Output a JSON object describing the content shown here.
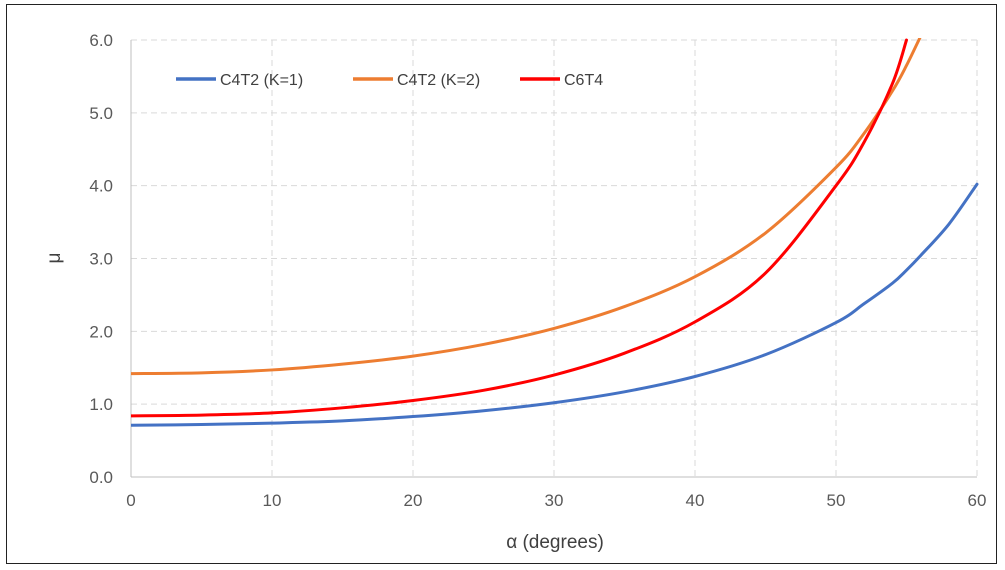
{
  "chart_data": {
    "type": "line",
    "title": "",
    "xlabel": "α (degrees)",
    "ylabel": "μ",
    "xlim": [
      0,
      60
    ],
    "ylim": [
      0,
      6
    ],
    "xticks": [
      "0",
      "10",
      "20",
      "30",
      "40",
      "50",
      "60"
    ],
    "yticks": [
      "0.0",
      "1.0",
      "2.0",
      "3.0",
      "4.0",
      "5.0",
      "6.0"
    ],
    "grid": true,
    "legend_position": "top-left",
    "x": [
      0,
      5,
      10,
      15,
      20,
      25,
      30,
      35,
      40,
      45,
      50,
      52,
      54,
      55,
      56,
      58,
      60
    ],
    "series": [
      {
        "name": "C4T2 (K=1)",
        "color": "#4472C4",
        "values": [
          0.71,
          0.72,
          0.74,
          0.77,
          0.83,
          0.91,
          1.02,
          1.17,
          1.38,
          1.68,
          2.12,
          2.38,
          2.66,
          2.84,
          3.04,
          3.47,
          4.02
        ]
      },
      {
        "name": "C4T2 (K=2)",
        "color": "#ED7D31",
        "values": [
          1.42,
          1.43,
          1.47,
          1.55,
          1.66,
          1.82,
          2.04,
          2.34,
          2.75,
          3.35,
          4.25,
          4.72,
          5.3,
          5.65,
          6.05,
          null,
          null
        ]
      },
      {
        "name": "C6T4",
        "color": "#FF0000",
        "values": [
          0.84,
          0.85,
          0.88,
          0.95,
          1.05,
          1.19,
          1.4,
          1.7,
          2.13,
          2.8,
          4.0,
          4.6,
          5.4,
          6.0,
          null,
          null,
          null
        ]
      }
    ]
  }
}
